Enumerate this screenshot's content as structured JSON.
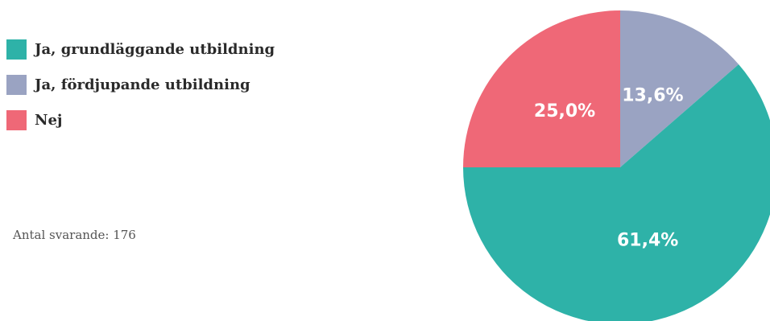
{
  "chart_data": {
    "type": "pie",
    "title": "",
    "start_angle_deg": 0,
    "direction": "clockwise",
    "legend_position": "left",
    "slices": [
      {
        "label": "Ja, fördjupande utbildning",
        "value": 13.6,
        "display": "13,6%",
        "color": "#9aa3c2"
      },
      {
        "label": "Ja, grundläggande utbildning",
        "value": 61.4,
        "display": "61,4%",
        "color": "#2eb2a8"
      },
      {
        "label": "Nej",
        "value": 25.0,
        "display": "25,0%",
        "color": "#ef6877"
      }
    ]
  },
  "legend": {
    "items": [
      {
        "label": "Ja, grundläggande utbildning",
        "color": "#2eb2a8"
      },
      {
        "label": "Ja, fördjupande utbildning",
        "color": "#9aa3c2"
      },
      {
        "label": "Nej",
        "color": "#ef6877"
      }
    ]
  },
  "footer": {
    "respondents": "Antal svarande: 176"
  }
}
